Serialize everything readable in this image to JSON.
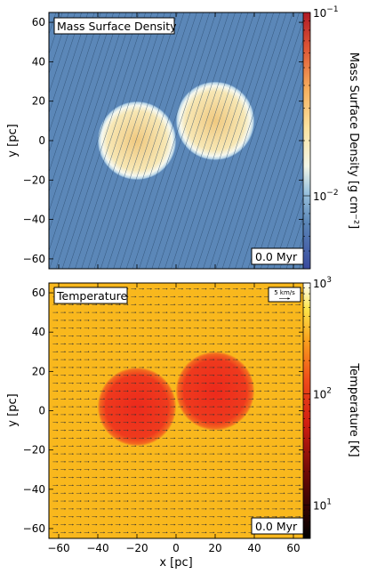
{
  "chart_data": [
    {
      "type": "heatmap",
      "title": "Mass Surface Density",
      "time_label": "0.0 Myr",
      "xlabel": "",
      "ylabel": "y [pc]",
      "xlim": [
        -65,
        65
      ],
      "ylim": [
        -65,
        65
      ],
      "yticks": [
        -60,
        -40,
        -20,
        0,
        20,
        40,
        60
      ],
      "ytick_labels": [
        "−60",
        "−40",
        "−20",
        "0",
        "20",
        "40",
        "60"
      ],
      "colorbar": {
        "label": "Mass Surface Density [g cm⁻²]",
        "scale": "log",
        "range": [
          0.004,
          0.1
        ],
        "major_labels": [
          {
            "value": 0.1,
            "base": "10",
            "exp": "−1"
          },
          {
            "value": 0.01,
            "base": "10",
            "exp": "−2"
          }
        ],
        "colormap": "blue-yellow-red"
      },
      "background_color": "#5b87b8",
      "clouds": [
        {
          "x": -20,
          "y": 0,
          "radius": 20,
          "core_color": "#f0c980"
        },
        {
          "x": 20,
          "y": 10,
          "radius": 20,
          "core_color": "#f0c980"
        }
      ],
      "streamlines": {
        "style": "diagonal",
        "color": "#2b4a6b"
      }
    },
    {
      "type": "heatmap",
      "title": "Temperature",
      "time_label": "0.0 Myr",
      "vector_key": "5 km/s",
      "xlabel": "x [pc]",
      "ylabel": "y [pc]",
      "xlim": [
        -65,
        65
      ],
      "ylim": [
        -65,
        65
      ],
      "xticks": [
        -60,
        -40,
        -20,
        0,
        20,
        40,
        60
      ],
      "xtick_labels": [
        "−60",
        "−40",
        "−20",
        "0",
        "20",
        "40",
        "60"
      ],
      "yticks": [
        -60,
        -40,
        -20,
        0,
        20,
        40,
        60
      ],
      "ytick_labels": [
        "−60",
        "−40",
        "−20",
        "0",
        "20",
        "40",
        "60"
      ],
      "colorbar": {
        "label": "Temperature [K]",
        "scale": "log",
        "range": [
          5,
          1000
        ],
        "major_labels": [
          {
            "value": 1000,
            "base": "10",
            "exp": "3"
          },
          {
            "value": 100,
            "base": "10",
            "exp": "2"
          },
          {
            "value": 10,
            "base": "10",
            "exp": "1"
          }
        ],
        "colormap": "black-red-yellow-white"
      },
      "background_color": "#f9b81d",
      "clouds": [
        {
          "x": -20,
          "y": 2,
          "radius": 20,
          "core_color": "#ee2a1c"
        },
        {
          "x": 20,
          "y": 10,
          "radius": 20,
          "core_color": "#ee2a1c"
        }
      ],
      "velocity_arrows": {
        "direction": "+x",
        "spacing_pc": 4,
        "color": "#333333"
      }
    }
  ]
}
